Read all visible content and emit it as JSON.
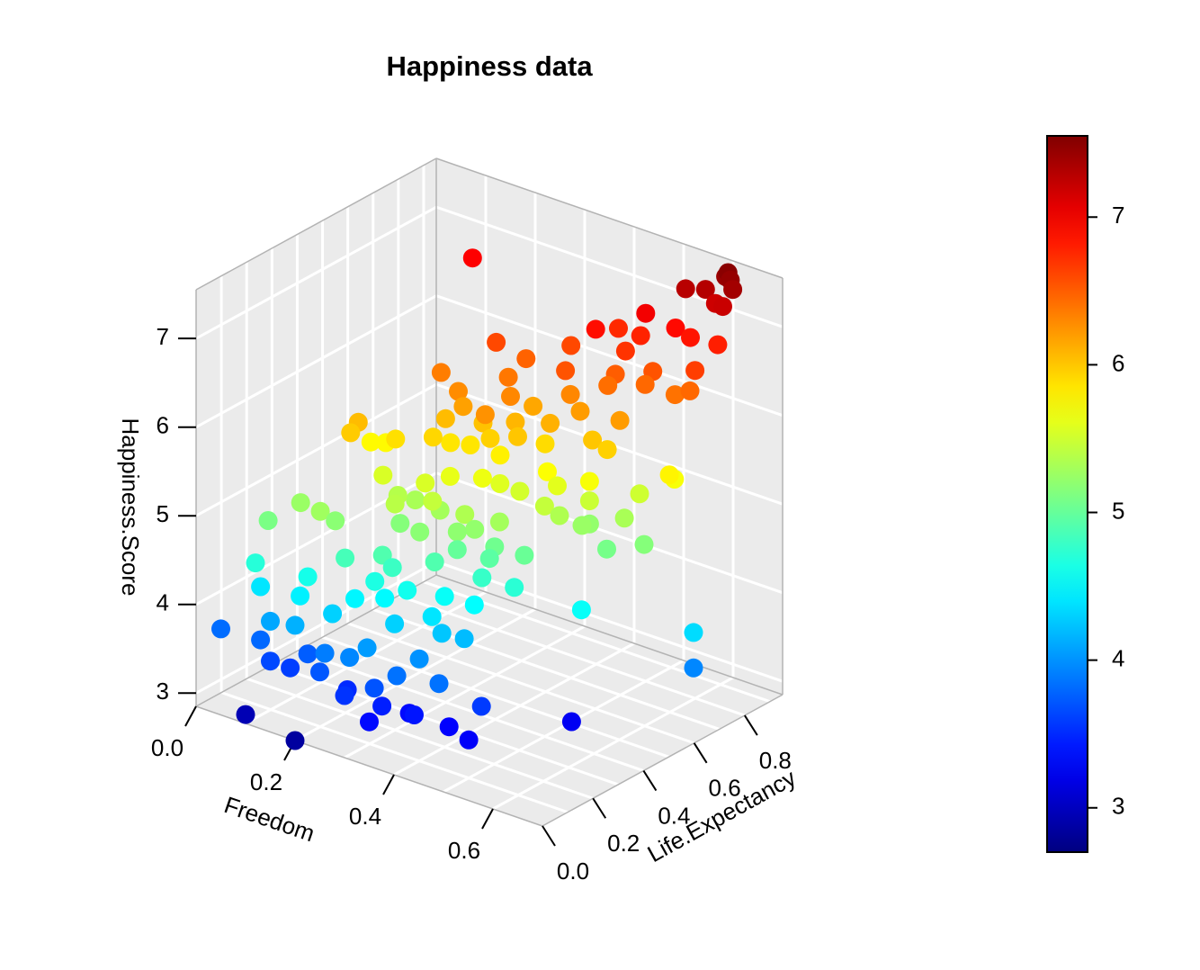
{
  "chart_data": {
    "type": "scatter",
    "subtype": "scatter3d",
    "title": "Happiness data",
    "x_axis": {
      "label": "Freedom",
      "range": [
        0,
        0.7
      ],
      "ticks": [
        "0.0",
        "0.2",
        "0.4",
        "0.6"
      ],
      "tick_values": [
        0,
        0.2,
        0.4,
        0.6
      ]
    },
    "y_axis": {
      "label": "Life.Expectancy",
      "range": [
        0,
        0.95
      ],
      "ticks": [
        "0.0",
        "0.2",
        "0.4",
        "0.6",
        "0.8"
      ],
      "tick_values": [
        0,
        0.2,
        0.4,
        0.6,
        0.8
      ]
    },
    "z_axis": {
      "label": "Happiness.Score",
      "range": [
        2.85,
        7.55
      ],
      "ticks": [
        "3",
        "4",
        "5",
        "6",
        "7"
      ],
      "tick_values": [
        3,
        4,
        5,
        6,
        7
      ]
    },
    "colorbar": {
      "range": [
        2.7,
        7.55
      ],
      "ticks": [
        "3",
        "4",
        "5",
        "6",
        "7"
      ],
      "tick_values": [
        3,
        4,
        5,
        6,
        7
      ],
      "palette": "jet"
    },
    "panel_color": "#ebebeb",
    "grid_color": "#ffffff",
    "points": [
      {
        "x": 0.61,
        "y": 0.91,
        "z": 7.5
      },
      {
        "x": 0.62,
        "y": 0.9,
        "z": 7.45
      },
      {
        "x": 0.6,
        "y": 0.92,
        "z": 7.42
      },
      {
        "x": 0.63,
        "y": 0.89,
        "z": 7.38
      },
      {
        "x": 0.58,
        "y": 0.88,
        "z": 7.3
      },
      {
        "x": 0.55,
        "y": 0.86,
        "z": 7.28
      },
      {
        "x": 0.62,
        "y": 0.87,
        "z": 7.2
      },
      {
        "x": 0.6,
        "y": 0.88,
        "z": 7.18
      },
      {
        "x": 0.15,
        "y": 0.8,
        "z": 6.95
      },
      {
        "x": 0.5,
        "y": 0.8,
        "z": 7.0
      },
      {
        "x": 0.45,
        "y": 0.7,
        "z": 6.88
      },
      {
        "x": 0.55,
        "y": 0.82,
        "z": 6.9
      },
      {
        "x": 0.58,
        "y": 0.82,
        "z": 6.85
      },
      {
        "x": 0.62,
        "y": 0.85,
        "z": 6.8
      },
      {
        "x": 0.5,
        "y": 0.78,
        "z": 6.78
      },
      {
        "x": 0.45,
        "y": 0.79,
        "z": 6.75
      },
      {
        "x": 0.5,
        "y": 0.72,
        "z": 6.7
      },
      {
        "x": 0.62,
        "y": 0.76,
        "z": 6.65
      },
      {
        "x": 0.3,
        "y": 0.6,
        "z": 6.6
      },
      {
        "x": 0.4,
        "y": 0.7,
        "z": 6.6
      },
      {
        "x": 0.55,
        "y": 0.73,
        "z": 6.55
      },
      {
        "x": 0.44,
        "y": 0.6,
        "z": 6.55
      },
      {
        "x": 0.5,
        "y": 0.68,
        "z": 6.5
      },
      {
        "x": 0.35,
        "y": 0.62,
        "z": 6.48
      },
      {
        "x": 0.55,
        "y": 0.7,
        "z": 6.45
      },
      {
        "x": 0.62,
        "y": 0.74,
        "z": 6.45
      },
      {
        "x": 0.5,
        "y": 0.65,
        "z": 6.42
      },
      {
        "x": 0.6,
        "y": 0.72,
        "z": 6.4
      },
      {
        "x": 0.35,
        "y": 0.55,
        "z": 6.38
      },
      {
        "x": 0.25,
        "y": 0.48,
        "z": 6.35
      },
      {
        "x": 0.45,
        "y": 0.6,
        "z": 6.3
      },
      {
        "x": 0.38,
        "y": 0.5,
        "z": 6.3
      },
      {
        "x": 0.3,
        "y": 0.45,
        "z": 6.28
      },
      {
        "x": 0.38,
        "y": 0.4,
        "z": 6.25
      },
      {
        "x": 0.55,
        "y": 0.6,
        "z": 6.2
      },
      {
        "x": 0.48,
        "y": 0.58,
        "z": 6.2
      },
      {
        "x": 0.32,
        "y": 0.43,
        "z": 6.18
      },
      {
        "x": 0.4,
        "y": 0.55,
        "z": 6.15
      },
      {
        "x": 0.45,
        "y": 0.52,
        "z": 6.1
      },
      {
        "x": 0.4,
        "y": 0.48,
        "z": 6.08
      },
      {
        "x": 0.3,
        "y": 0.4,
        "z": 6.05
      },
      {
        "x": 0.2,
        "y": 0.25,
        "z": 6.05
      },
      {
        "x": 0.35,
        "y": 0.45,
        "z": 6.02
      },
      {
        "x": 0.52,
        "y": 0.55,
        "z": 6.0
      },
      {
        "x": 0.42,
        "y": 0.45,
        "z": 6.0
      },
      {
        "x": 0.2,
        "y": 0.22,
        "z": 5.98
      },
      {
        "x": 0.38,
        "y": 0.42,
        "z": 5.95
      },
      {
        "x": 0.55,
        "y": 0.55,
        "z": 5.95
      },
      {
        "x": 0.3,
        "y": 0.35,
        "z": 5.92
      },
      {
        "x": 0.45,
        "y": 0.5,
        "z": 5.9
      },
      {
        "x": 0.25,
        "y": 0.3,
        "z": 5.88
      },
      {
        "x": 0.32,
        "y": 0.38,
        "z": 5.85
      },
      {
        "x": 0.35,
        "y": 0.4,
        "z": 5.85
      },
      {
        "x": 0.4,
        "y": 0.42,
        "z": 5.8
      },
      {
        "x": 0.65,
        "y": 0.6,
        "z": 5.78
      },
      {
        "x": 0.2,
        "y": 0.3,
        "z": 5.75
      },
      {
        "x": 0.22,
        "y": 0.32,
        "z": 5.75
      },
      {
        "x": 0.48,
        "y": 0.45,
        "z": 5.72
      },
      {
        "x": 0.65,
        "y": 0.62,
        "z": 5.7
      },
      {
        "x": 0.55,
        "y": 0.48,
        "z": 5.7
      },
      {
        "x": 0.4,
        "y": 0.35,
        "z": 5.65
      },
      {
        "x": 0.35,
        "y": 0.32,
        "z": 5.62
      },
      {
        "x": 0.5,
        "y": 0.45,
        "z": 5.6
      },
      {
        "x": 0.42,
        "y": 0.38,
        "z": 5.58
      },
      {
        "x": 0.32,
        "y": 0.28,
        "z": 5.55
      },
      {
        "x": 0.25,
        "y": 0.25,
        "z": 5.55
      },
      {
        "x": 0.45,
        "y": 0.4,
        "z": 5.52
      },
      {
        "x": 0.6,
        "y": 0.58,
        "z": 5.5
      },
      {
        "x": 0.55,
        "y": 0.48,
        "z": 5.48
      },
      {
        "x": 0.35,
        "y": 0.25,
        "z": 5.45
      },
      {
        "x": 0.5,
        "y": 0.4,
        "z": 5.45
      },
      {
        "x": 0.3,
        "y": 0.2,
        "z": 5.4
      },
      {
        "x": 0.28,
        "y": 0.25,
        "z": 5.38
      },
      {
        "x": 0.4,
        "y": 0.28,
        "z": 5.35
      },
      {
        "x": 0.52,
        "y": 0.42,
        "z": 5.35
      },
      {
        "x": 0.3,
        "y": 0.28,
        "z": 5.32
      },
      {
        "x": 0.6,
        "y": 0.52,
        "z": 5.32
      },
      {
        "x": 0.45,
        "y": 0.32,
        "z": 5.3
      },
      {
        "x": 0.35,
        "y": 0.28,
        "z": 5.3
      },
      {
        "x": 0.2,
        "y": 0.1,
        "z": 5.28
      },
      {
        "x": 0.15,
        "y": 0.12,
        "z": 5.25
      },
      {
        "x": 0.55,
        "y": 0.45,
        "z": 5.25
      },
      {
        "x": 0.42,
        "y": 0.28,
        "z": 5.22
      },
      {
        "x": 0.55,
        "y": 0.48,
        "z": 5.22
      },
      {
        "x": 0.4,
        "y": 0.25,
        "z": 5.2
      },
      {
        "x": 0.35,
        "y": 0.2,
        "z": 5.18
      },
      {
        "x": 0.22,
        "y": 0.12,
        "z": 5.18
      },
      {
        "x": 0.65,
        "y": 0.5,
        "z": 5.15
      },
      {
        "x": 0.3,
        "y": 0.22,
        "z": 5.15
      },
      {
        "x": 0.12,
        "y": 0.05,
        "z": 5.1
      },
      {
        "x": 0.6,
        "y": 0.45,
        "z": 5.08
      },
      {
        "x": 0.45,
        "y": 0.3,
        "z": 5.05
      },
      {
        "x": 0.5,
        "y": 0.32,
        "z": 5.02
      },
      {
        "x": 0.4,
        "y": 0.25,
        "z": 5.0
      },
      {
        "x": 0.45,
        "y": 0.28,
        "z": 4.95
      },
      {
        "x": 0.3,
        "y": 0.15,
        "z": 4.9
      },
      {
        "x": 0.38,
        "y": 0.2,
        "z": 4.9
      },
      {
        "x": 0.25,
        "y": 0.1,
        "z": 4.85
      },
      {
        "x": 0.32,
        "y": 0.15,
        "z": 4.8
      },
      {
        "x": 0.45,
        "y": 0.25,
        "z": 4.78
      },
      {
        "x": 0.5,
        "y": 0.28,
        "z": 4.72
      },
      {
        "x": 0.12,
        "y": 0.0,
        "z": 4.7
      },
      {
        "x": 0.3,
        "y": 0.12,
        "z": 4.65
      },
      {
        "x": 0.2,
        "y": 0.05,
        "z": 4.62
      },
      {
        "x": 0.35,
        "y": 0.15,
        "z": 4.6
      },
      {
        "x": 0.4,
        "y": 0.2,
        "z": 4.55
      },
      {
        "x": 0.6,
        "y": 0.35,
        "z": 4.55
      },
      {
        "x": 0.45,
        "y": 0.22,
        "z": 4.52
      },
      {
        "x": 0.32,
        "y": 0.12,
        "z": 4.5
      },
      {
        "x": 0.28,
        "y": 0.08,
        "z": 4.48
      },
      {
        "x": 0.2,
        "y": 0.02,
        "z": 4.45
      },
      {
        "x": 0.12,
        "y": 0.02,
        "z": 4.4
      },
      {
        "x": 0.4,
        "y": 0.15,
        "z": 4.4
      },
      {
        "x": 0.75,
        "y": 0.5,
        "z": 4.35
      },
      {
        "x": 0.25,
        "y": 0.05,
        "z": 4.3
      },
      {
        "x": 0.35,
        "y": 0.1,
        "z": 4.3
      },
      {
        "x": 0.42,
        "y": 0.15,
        "z": 4.25
      },
      {
        "x": 0.45,
        "y": 0.18,
        "z": 4.2
      },
      {
        "x": 0.2,
        "y": 0.0,
        "z": 4.15
      },
      {
        "x": 0.15,
        "y": 0.0,
        "z": 4.1
      },
      {
        "x": 0.32,
        "y": 0.05,
        "z": 4.05
      },
      {
        "x": 0.4,
        "y": 0.1,
        "z": 4.0
      },
      {
        "x": 0.75,
        "y": 0.5,
        "z": 3.95
      },
      {
        "x": 0.3,
        "y": 0.02,
        "z": 3.95
      },
      {
        "x": 0.25,
        "y": 0.02,
        "z": 3.9
      },
      {
        "x": 0.38,
        "y": 0.05,
        "z": 3.85
      },
      {
        "x": 0.45,
        "y": 0.08,
        "z": 3.85
      },
      {
        "x": 0.05,
        "y": 0.0,
        "z": 3.82
      },
      {
        "x": 0.12,
        "y": 0.02,
        "z": 3.8
      },
      {
        "x": 0.2,
        "y": 0.05,
        "z": 3.75
      },
      {
        "x": 0.25,
        "y": 0.0,
        "z": 3.72
      },
      {
        "x": 0.35,
        "y": 0.02,
        "z": 3.7
      },
      {
        "x": 0.15,
        "y": 0.0,
        "z": 3.65
      },
      {
        "x": 0.18,
        "y": 0.02,
        "z": 3.6
      },
      {
        "x": 0.5,
        "y": 0.15,
        "z": 3.58
      },
      {
        "x": 0.3,
        "y": 0.0,
        "z": 3.55
      },
      {
        "x": 0.28,
        "y": 0.05,
        "z": 3.5
      },
      {
        "x": 0.35,
        "y": 0.05,
        "z": 3.45
      },
      {
        "x": 0.4,
        "y": 0.08,
        "z": 3.4
      },
      {
        "x": 0.35,
        "y": 0.0,
        "z": 3.35
      },
      {
        "x": 0.38,
        "y": 0.1,
        "z": 3.35
      },
      {
        "x": 0.45,
        "y": 0.12,
        "z": 3.3
      },
      {
        "x": 0.5,
        "y": 0.1,
        "z": 3.28
      },
      {
        "x": 0.58,
        "y": 0.35,
        "z": 3.25
      },
      {
        "x": 0.1,
        "y": 0.0,
        "z": 2.95
      },
      {
        "x": 0.2,
        "y": 0.0,
        "z": 2.85
      }
    ]
  }
}
